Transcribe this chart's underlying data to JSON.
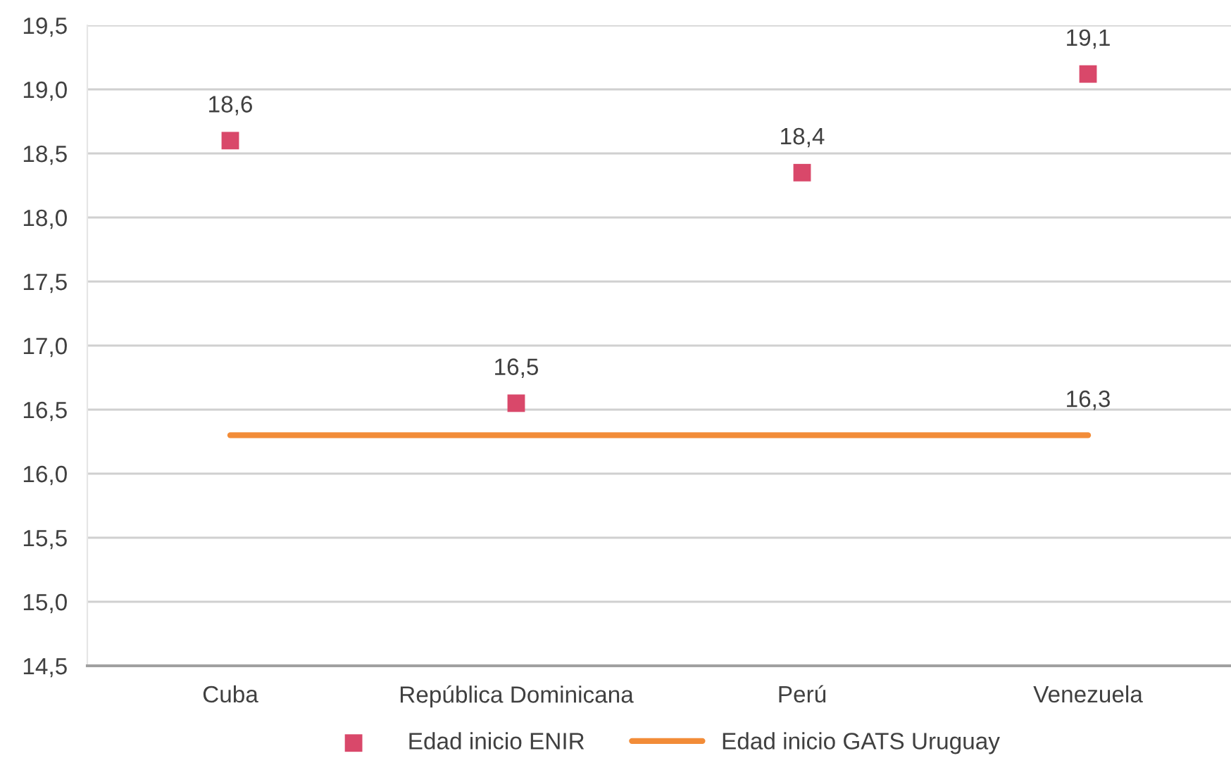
{
  "chart_data": {
    "type": "line",
    "categories": [
      "Cuba",
      "República Dominicana",
      "Perú",
      "Venezuela"
    ],
    "series": [
      {
        "name": "Edad inicio ENIR",
        "type": "scatter",
        "color": "#d9486a",
        "marker": "square",
        "values": [
          18.6,
          16.55,
          18.35,
          19.12
        ],
        "value_labels": [
          "18,6",
          "16,5",
          "18,4",
          "19,1"
        ]
      },
      {
        "name": "Edad inicio GATS Uruguay",
        "color": "#f28c38",
        "marker": "none",
        "line_style": "solid",
        "values": [
          16.3,
          16.3,
          16.3,
          16.3
        ],
        "value_labels": [
          null,
          null,
          null,
          "16,3"
        ]
      }
    ],
    "ylim": [
      14.5,
      19.5
    ],
    "yticks": [
      {
        "value": 14.5,
        "label": "14,5"
      },
      {
        "value": 15,
        "label": "15,0"
      },
      {
        "value": 15.5,
        "label": "15,5"
      },
      {
        "value": 16,
        "label": "16,0"
      },
      {
        "value": 16.5,
        "label": "16,5"
      },
      {
        "value": 17,
        "label": "17,0"
      },
      {
        "value": 17.5,
        "label": "17,5"
      },
      {
        "value": 18,
        "label": "18,0"
      },
      {
        "value": 18.5,
        "label": "18,5"
      },
      {
        "value": 19,
        "label": "19,0"
      },
      {
        "value": 19.5,
        "label": "19,5"
      }
    ],
    "grid": "y",
    "legend": "bottom"
  }
}
